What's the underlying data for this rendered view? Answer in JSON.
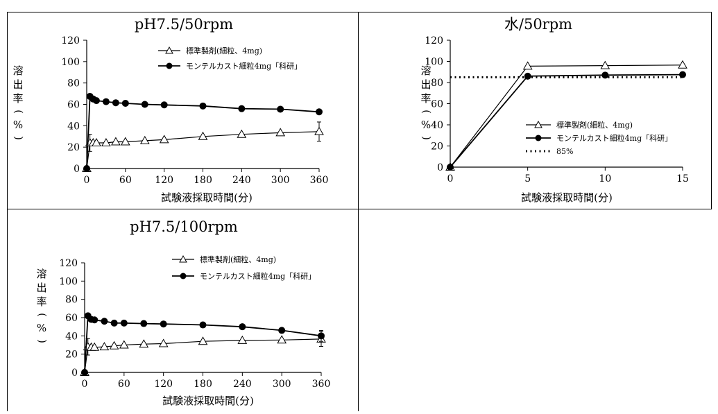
{
  "chart_data": [
    {
      "type": "line",
      "title": "pH7.5/50rpm",
      "xlabel": "試験液採取時間(分)",
      "ylabel": "溶出率(%)",
      "xlim": [
        0,
        360
      ],
      "ylim": [
        0,
        120
      ],
      "xticks": [
        0,
        60,
        120,
        180,
        240,
        300,
        360
      ],
      "yticks": [
        0,
        20,
        40,
        60,
        80,
        100,
        120
      ],
      "legend_position": "top-right",
      "series": [
        {
          "name": "標準製剤(細粒、4mg)",
          "marker": "triangle-open",
          "x": [
            0,
            5,
            10,
            15,
            30,
            45,
            60,
            90,
            120,
            180,
            240,
            300,
            360
          ],
          "y": [
            0,
            24,
            24,
            24,
            24,
            25,
            25,
            26,
            27,
            30,
            32,
            33.5,
            34.5
          ],
          "error": [
            0,
            8,
            0,
            0,
            0,
            0,
            0,
            0,
            0,
            0,
            0,
            0,
            9
          ]
        },
        {
          "name": "モンテルカスト細粒4mg「科研」",
          "marker": "circle-filled",
          "x": [
            0,
            5,
            10,
            15,
            30,
            45,
            60,
            90,
            120,
            180,
            240,
            300,
            360
          ],
          "y": [
            0,
            67.5,
            65,
            63.5,
            62.5,
            61.5,
            61,
            60,
            59.5,
            58.5,
            56,
            55.5,
            53
          ]
        }
      ]
    },
    {
      "type": "line",
      "title": "水/50rpm",
      "xlabel": "試験液採取時間(分)",
      "ylabel": "溶出率(%)",
      "xlim": [
        0,
        15
      ],
      "ylim": [
        0,
        120
      ],
      "xticks": [
        0,
        5,
        10,
        15
      ],
      "yticks": [
        0,
        20,
        40,
        60,
        80,
        100,
        120
      ],
      "legend_position": "bottom-center",
      "series": [
        {
          "name": "標準製剤(細粒、4mg)",
          "marker": "triangle-open",
          "x": [
            0,
            5,
            10,
            15
          ],
          "y": [
            0,
            95.5,
            96,
            96.5
          ]
        },
        {
          "name": "モンテルカスト細粒4mg「科研」",
          "marker": "circle-filled",
          "x": [
            0,
            5,
            10,
            15
          ],
          "y": [
            0,
            86,
            87,
            87.5
          ]
        },
        {
          "name": "85%",
          "marker": "dotted-line",
          "x": [
            0,
            15
          ],
          "y": [
            85,
            85
          ]
        }
      ]
    },
    {
      "type": "line",
      "title": "pH7.5/100rpm",
      "xlabel": "試験液採取時間(分)",
      "ylabel": "溶出率(%)",
      "xlim": [
        0,
        360
      ],
      "ylim": [
        0,
        120
      ],
      "xticks": [
        0,
        60,
        120,
        180,
        240,
        300,
        360
      ],
      "yticks": [
        0,
        20,
        40,
        60,
        80,
        100,
        120
      ],
      "legend_position": "top-right",
      "series": [
        {
          "name": "標準製剤(細粒、4mg)",
          "marker": "triangle-open",
          "x": [
            0,
            5,
            10,
            15,
            30,
            45,
            60,
            90,
            120,
            180,
            240,
            300,
            360
          ],
          "y": [
            0,
            28,
            27.5,
            27.5,
            28,
            29,
            30,
            31,
            31.5,
            34,
            35,
            35.5,
            36.5
          ],
          "error": [
            0,
            9,
            0,
            0,
            0,
            0,
            0,
            0,
            0,
            0,
            0,
            0,
            8
          ]
        },
        {
          "name": "モンテルカスト細粒4mg「科研」",
          "marker": "circle-filled",
          "x": [
            0,
            5,
            10,
            15,
            30,
            45,
            60,
            90,
            120,
            180,
            240,
            300,
            360
          ],
          "y": [
            0,
            62,
            58,
            57.5,
            56,
            54,
            54,
            53.5,
            53,
            52,
            50,
            46,
            40
          ],
          "error": [
            0,
            0,
            0,
            0,
            0,
            0,
            0,
            0,
            0,
            0,
            0,
            0,
            6
          ]
        }
      ]
    }
  ]
}
